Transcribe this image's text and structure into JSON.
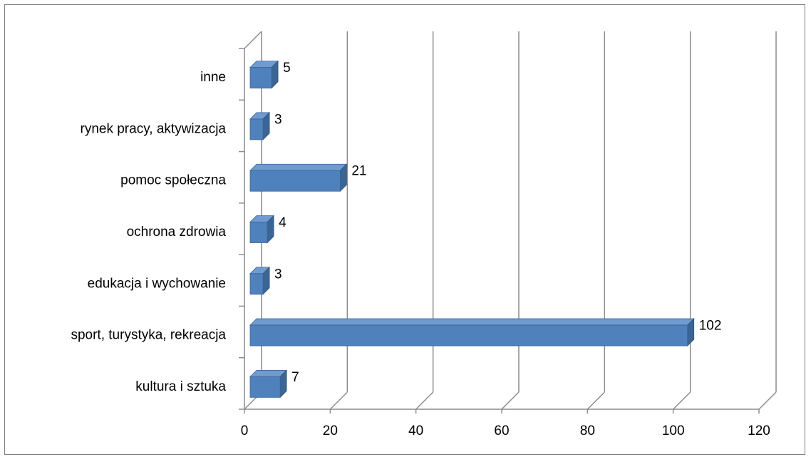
{
  "chart_data": {
    "type": "bar",
    "orientation": "horizontal",
    "style": "3d-clustered",
    "title": "",
    "xlabel": "",
    "ylabel": "",
    "categories": [
      "kultura i sztuka",
      "sport, turystyka, rekreacja",
      "edukacja i wychowanie",
      "ochrona zdrowia",
      "pomoc społeczna",
      "rynek pracy, aktywizacja",
      "inne"
    ],
    "values": [
      7,
      102,
      3,
      4,
      21,
      3,
      5
    ],
    "xlim": [
      0,
      120
    ],
    "x_ticks": [
      0,
      20,
      40,
      60,
      80,
      100,
      120
    ],
    "grid": true,
    "legend": "none",
    "colors": {
      "bar_front": "#4f81bd",
      "bar_top": "#6f9bd0",
      "bar_side": "#3a6595",
      "gridline": "#8c8c8c",
      "frame": "#7f7f7f"
    }
  }
}
